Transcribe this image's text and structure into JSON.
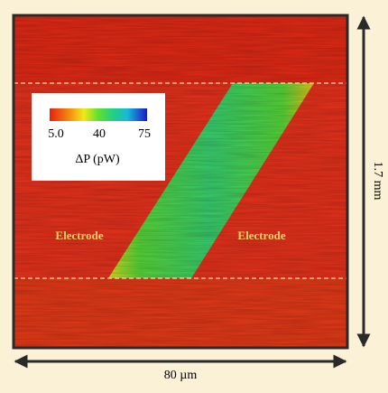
{
  "labels": {
    "left_electrode": "Electrode",
    "right_electrode": "Electrode",
    "width": "80 µm",
    "height": "1.7 mm"
  },
  "colorbar": {
    "ticks": [
      "5.0",
      "40",
      "75"
    ],
    "label": "ΔP (pW)"
  }
}
